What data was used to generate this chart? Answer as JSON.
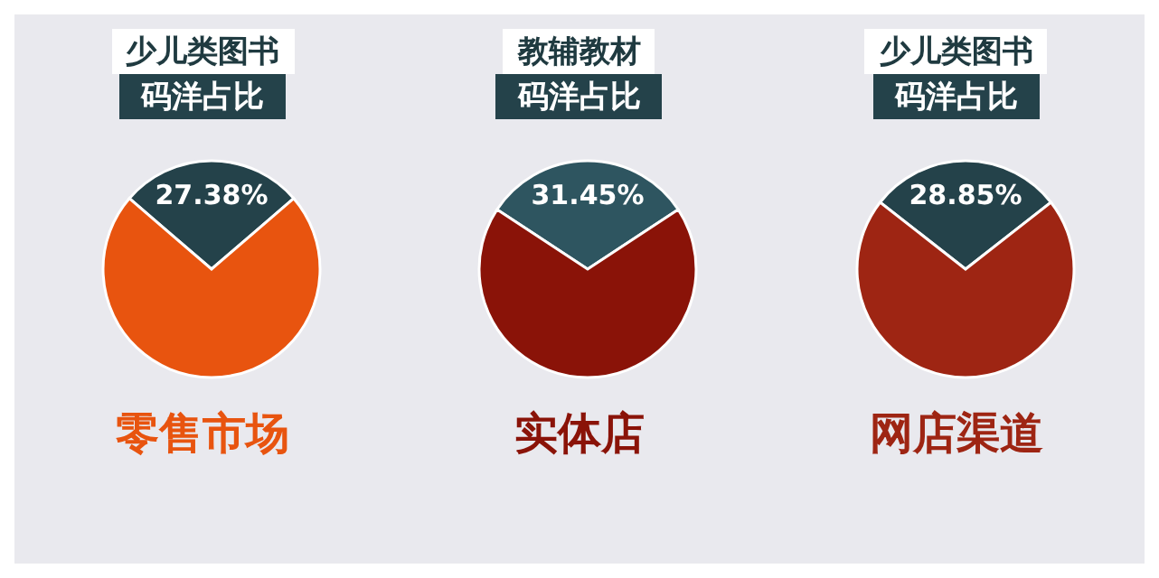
{
  "chart_data": [
    {
      "type": "pie",
      "title": "少儿类图书",
      "subtitle": "码洋占比",
      "xlabel": "零售市场",
      "categories": [
        null,
        null
      ],
      "values": [
        27.38,
        72.62
      ],
      "colors": [
        "#24424a",
        "#e8540f"
      ],
      "value_labels": [
        "27.38%",
        null
      ]
    },
    {
      "type": "pie",
      "title": "教辅教材",
      "subtitle": "码洋占比",
      "xlabel": "实体店",
      "categories": [
        null,
        null
      ],
      "values": [
        31.45,
        68.55
      ],
      "colors": [
        "#2e5560",
        "#8a1308"
      ],
      "value_labels": [
        "31.45%",
        null
      ]
    },
    {
      "type": "pie",
      "title": "少儿类图书",
      "subtitle": "码洋占比",
      "xlabel": "网店渠道",
      "categories": [
        null,
        null
      ],
      "values": [
        28.85,
        71.15
      ],
      "colors": [
        "#24424a",
        "#9e2513"
      ],
      "value_labels": [
        "28.85%",
        null
      ]
    }
  ]
}
